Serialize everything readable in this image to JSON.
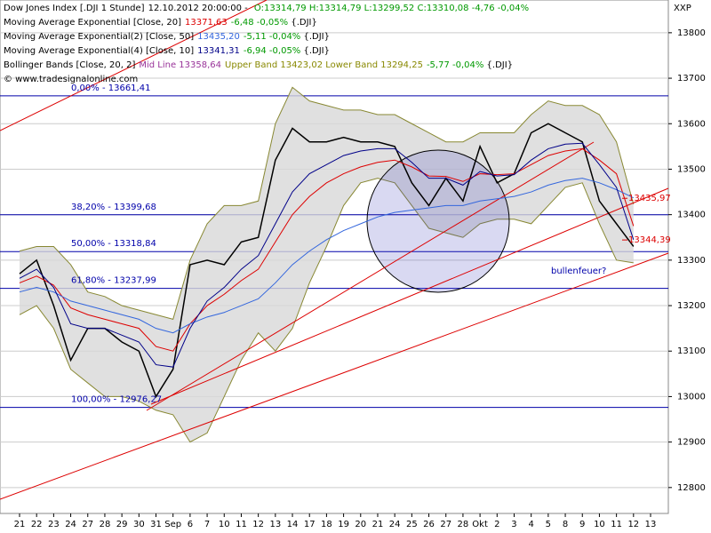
{
  "chart_data": {
    "type": "line",
    "corner": "XXP",
    "header": {
      "time": "12.10.2012 20:00:00 - ",
      "ohlc": "O:13314,79 H:13314,79 L:13299,52 C:13310,08 -4,76 -0,04%",
      "ohlc_color": "#009900"
    },
    "copyright": "© www.tradesignalonline.com",
    "categories": [
      "21",
      "22",
      "23",
      "24",
      "27",
      "28",
      "29",
      "30",
      "31",
      "Sep",
      "6",
      "7",
      "10",
      "11",
      "12",
      "13",
      "14",
      "17",
      "18",
      "19",
      "20",
      "21",
      "24",
      "25",
      "26",
      "27",
      "28",
      "Okt",
      "2",
      "3",
      "4",
      "5",
      "8",
      "9",
      "10",
      "11",
      "12",
      "13"
    ],
    "series": [
      {
        "name": "Dow Jones Index [.DJI  1 Stunde]",
        "color": "#000000",
        "legend": false,
        "values": [
          13270,
          13300,
          13200,
          13080,
          13150,
          13150,
          13120,
          13100,
          13000,
          13060,
          13290,
          13300,
          13290,
          13340,
          13350,
          13520,
          13590,
          13560,
          13560,
          13570,
          13560,
          13560,
          13550,
          13470,
          13420,
          13480,
          13430,
          13550,
          13470,
          13490,
          13580,
          13600,
          13580,
          13560,
          13430,
          13380,
          13330,
          null
        ]
      },
      {
        "name": "Moving Average Exponential [Close, 20]",
        "color": "#dd0000",
        "last": "13371,63",
        "change": "-6,48 -0,05%",
        "suffix": " {.DJI}",
        "values": [
          13250,
          13265,
          13245,
          13195,
          13180,
          13170,
          13160,
          13150,
          13110,
          13100,
          13160,
          13200,
          13225,
          13255,
          13280,
          13340,
          13400,
          13440,
          13470,
          13490,
          13505,
          13515,
          13520,
          13505,
          13485,
          13484,
          13473,
          13490,
          13488,
          13490,
          13510,
          13530,
          13540,
          13545,
          13520,
          13490,
          13375,
          null
        ]
      },
      {
        "name": "Moving Average Exponential(2) [Close, 50]",
        "color": "#3366dd",
        "last": "13435,20",
        "change": "-5,11 -0,04%",
        "suffix": " {.DJI}",
        "values": [
          13230,
          13240,
          13230,
          13210,
          13200,
          13190,
          13180,
          13170,
          13150,
          13140,
          13160,
          13175,
          13185,
          13200,
          13215,
          13250,
          13290,
          13320,
          13345,
          13365,
          13380,
          13395,
          13405,
          13410,
          13415,
          13420,
          13420,
          13430,
          13435,
          13440,
          13450,
          13465,
          13475,
          13480,
          13470,
          13455,
          13437,
          null
        ]
      },
      {
        "name": "Moving Average Exponential(4) [Close, 10]",
        "color": "#000088",
        "last": "13341,31",
        "change": "-6,94 -0,05%",
        "suffix": " {.DJI}",
        "values": [
          13260,
          13280,
          13240,
          13160,
          13150,
          13150,
          13135,
          13120,
          13070,
          13065,
          13150,
          13210,
          13240,
          13280,
          13310,
          13380,
          13450,
          13490,
          13510,
          13530,
          13540,
          13545,
          13545,
          13515,
          13480,
          13480,
          13465,
          13495,
          13485,
          13488,
          13520,
          13545,
          13555,
          13557,
          13510,
          13460,
          13345,
          null
        ]
      }
    ],
    "bands": {
      "name": "Bollinger Bands [Close, 20, 2]",
      "color": "#888833",
      "fill": "#d8d8d8",
      "mid": "Mid Line 13358,64",
      "mid_color": "#993399",
      "bands_text": "Upper Band 13423,02 Lower Band 13294,25",
      "bands_color": "#888800",
      "change": "-5,77 -0,04%",
      "suffix": " {.DJI}",
      "upper": [
        13320,
        13330,
        13330,
        13290,
        13230,
        13220,
        13200,
        13190,
        13180,
        13170,
        13300,
        13380,
        13420,
        13420,
        13430,
        13600,
        13680,
        13650,
        13640,
        13630,
        13630,
        13620,
        13620,
        13600,
        13580,
        13560,
        13560,
        13580,
        13580,
        13580,
        13620,
        13650,
        13640,
        13640,
        13620,
        13560,
        13423,
        null
      ],
      "lower": [
        13180,
        13200,
        13150,
        13060,
        13030,
        13000,
        13000,
        12990,
        12970,
        12960,
        12900,
        12920,
        13000,
        13080,
        13140,
        13100,
        13150,
        13250,
        13330,
        13420,
        13470,
        13480,
        13470,
        13420,
        13370,
        13360,
        13350,
        13380,
        13390,
        13390,
        13380,
        13420,
        13460,
        13470,
        13380,
        13300,
        13294,
        null
      ]
    },
    "levels": [
      {
        "value": 13661.41,
        "label": "0,00% - 13661,41"
      },
      {
        "value": 13399.68,
        "label": "38,20% - 13399,68"
      },
      {
        "value": 13318.84,
        "label": "50,00% - 13318,84"
      },
      {
        "value": 13237.99,
        "label": "61,80% - 13237,99"
      },
      {
        "value": 12976.27,
        "label": "100,00% - 12976,27"
      }
    ],
    "price_marks": [
      {
        "value": 13435.97,
        "label": "13435,97"
      },
      {
        "value": 13344.39,
        "label": "13344,39"
      }
    ],
    "note": "bullenfeuer?",
    "ylim": [
      12743,
      13872
    ],
    "yticks": [
      12800,
      12900,
      13000,
      13100,
      13200,
      13300,
      13400,
      13500,
      13600,
      13700,
      13800
    ],
    "grid": true
  }
}
